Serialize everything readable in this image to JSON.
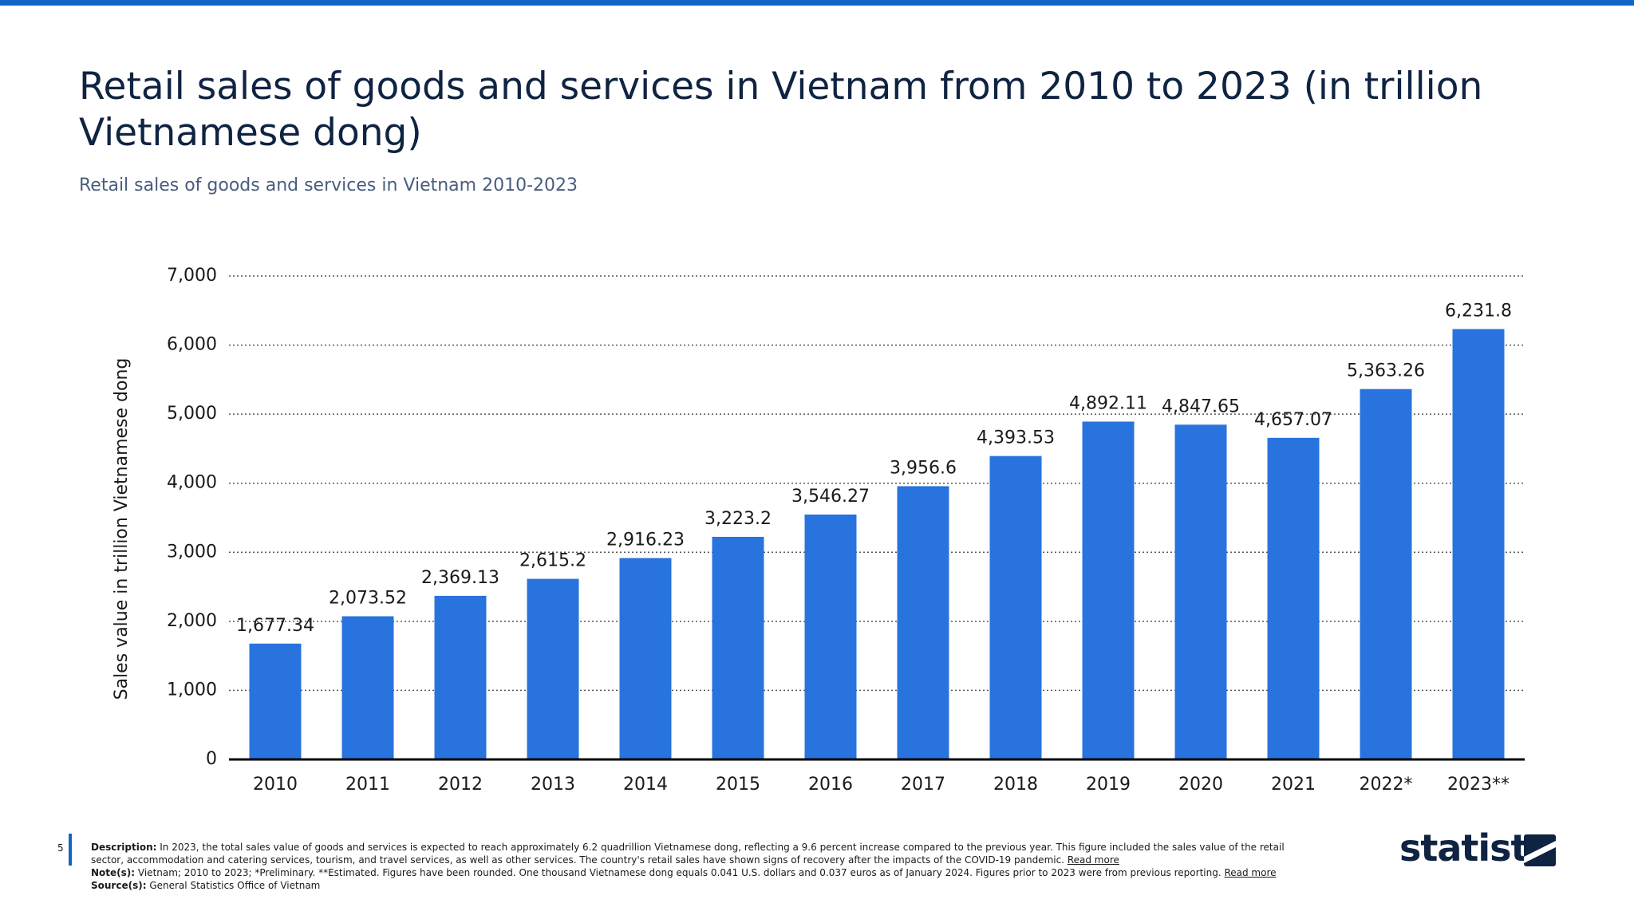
{
  "chart_data": {
    "type": "bar",
    "title": "Retail sales of goods and services in Vietnam from 2010 to 2023 (in trillion Vietnamese dong)",
    "subtitle": "Retail sales of goods and services in Vietnam 2010-2023",
    "y_label": "Sales value in trillion Vietnamese dong",
    "categories": [
      "2010",
      "2011",
      "2012",
      "2013",
      "2014",
      "2015",
      "2016",
      "2017",
      "2018",
      "2019",
      "2020",
      "2021",
      "2022*",
      "2023**"
    ],
    "values": [
      1677.34,
      2073.52,
      2369.13,
      2615.2,
      2916.23,
      3223.2,
      3546.27,
      3956.6,
      4393.53,
      4892.11,
      4847.65,
      4657.07,
      5363.26,
      6231.8
    ],
    "value_labels": [
      "1,677.34",
      "2,073.52",
      "2,369.13",
      "2,615.2",
      "2,916.23",
      "3,223.2",
      "3,546.27",
      "3,956.6",
      "4,393.53",
      "4,892.11",
      "4,847.65",
      "4,657.07",
      "5,363.26",
      "6,231.8"
    ],
    "color": "#2873dd",
    "ylim": [
      0,
      7000
    ],
    "yticks": [
      0,
      {
        "value": 1000,
        "label": "1,000"
      },
      {
        "value": 2000,
        "label": "2,000"
      },
      {
        "value": 3000,
        "label": "3,000"
      },
      {
        "value": 4000,
        "label": "4,000"
      },
      {
        "value": 5000,
        "label": "5,000"
      },
      {
        "value": 6000,
        "label": "6,000"
      },
      {
        "value": 7000,
        "label": "7,000"
      }
    ],
    "grid": true
  },
  "footer": {
    "page": "5",
    "description_label": "Description:",
    "description": "In 2023, the total sales value of goods and services is expected to reach approximately 6.2 quadrillion Vietnamese dong, reflecting a 9.6 percent increase compared to the previous year. This figure included the sales value of the retail sector, accommodation and catering services, tourism, and travel services, as well as other services. The country's retail sales have shown signs of recovery after the impacts of the COVID-19 pandemic.",
    "description_link": "Read more",
    "notes_label": "Note(s):",
    "notes": "Vietnam; 2010 to 2023; *Preliminary. **Estimated. Figures have been rounded. One thousand Vietnamese dong equals 0.041 U.S. dollars and 0.037 euros as of January 2024. Figures prior to 2023 were from previous reporting.",
    "notes_link": "Read more",
    "source_label": "Source(s):",
    "source": "General Statistics Office of Vietnam",
    "logo": "statista"
  }
}
